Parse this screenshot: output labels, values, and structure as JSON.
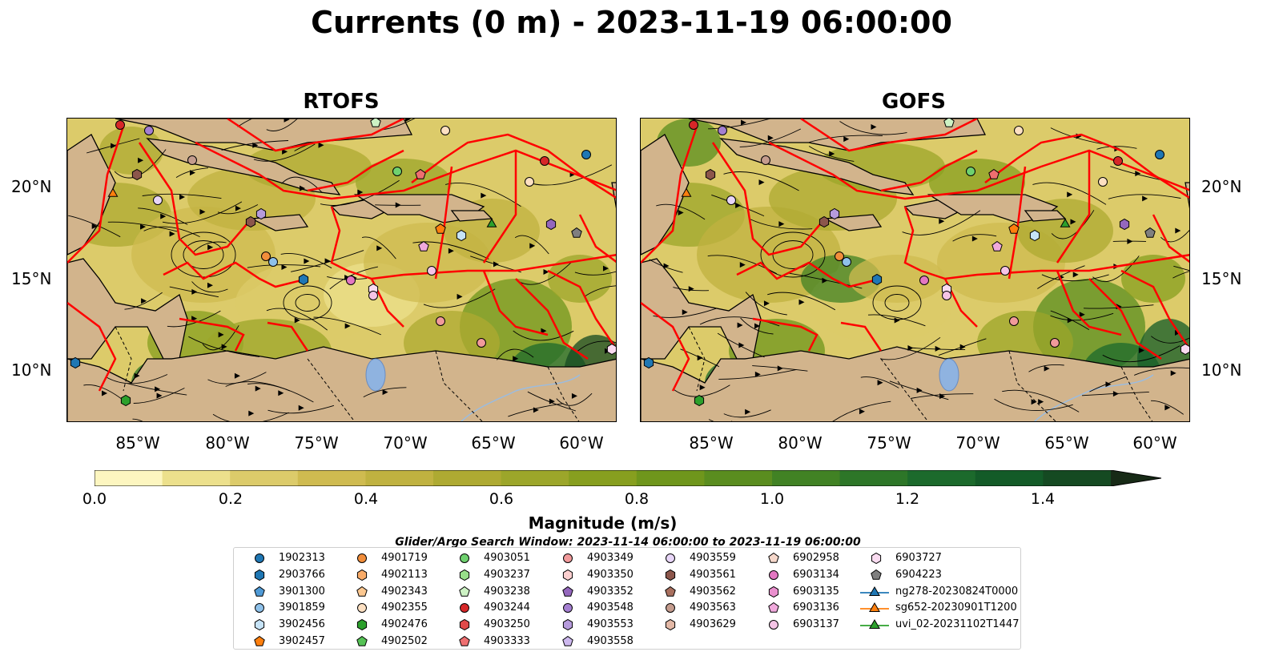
{
  "title": "Currents (0 m) - 2023-11-19 06:00:00",
  "panels": [
    {
      "title": "RTOFS"
    },
    {
      "title": "GOFS"
    }
  ],
  "lat_labels": [
    "20°N",
    "15°N",
    "10°N"
  ],
  "lon_labels": [
    "85°W",
    "80°W",
    "75°W",
    "70°W",
    "65°W",
    "60°W"
  ],
  "colorbar": {
    "label": "Magnitude (m/s)",
    "ticks": [
      "0.0",
      "0.2",
      "0.4",
      "0.6",
      "0.8",
      "1.0",
      "1.2",
      "1.4"
    ],
    "colors": [
      "#fdf6c0",
      "#ece08c",
      "#dccb6a",
      "#cfbb50",
      "#c0b240",
      "#aeaa32",
      "#9ca62a",
      "#879f1f",
      "#6f961c",
      "#5a8d1f",
      "#418224",
      "#2d7628",
      "#1c6a2c",
      "#135b28",
      "#154a22",
      "#16381b",
      "#172a16"
    ]
  },
  "search_window": "Glider/Argo Search Window: 2023-11-14 06:00:00 to 2023-11-19 06:00:00",
  "legend": {
    "columns": [
      [
        {
          "label": "1902313",
          "marker": "circle",
          "color": "#1f77b4"
        },
        {
          "label": "2903766",
          "marker": "hexagon",
          "color": "#1f77b4"
        },
        {
          "label": "3901300",
          "marker": "pentagon",
          "color": "#4f9ad6"
        },
        {
          "label": "3901859",
          "marker": "circle",
          "color": "#8ec1ea"
        },
        {
          "label": "3902456",
          "marker": "hexagon",
          "color": "#c6e3f7"
        },
        {
          "label": "3902457",
          "marker": "pentagon",
          "color": "#ff7f0e"
        }
      ],
      [
        {
          "label": "4901719",
          "marker": "circle",
          "color": "#f28e3b"
        },
        {
          "label": "4902113",
          "marker": "hexagon",
          "color": "#f9ab68"
        },
        {
          "label": "4902343",
          "marker": "pentagon",
          "color": "#fcc891"
        },
        {
          "label": "4902355",
          "marker": "circle",
          "color": "#fde0c2"
        },
        {
          "label": "4902476",
          "marker": "hexagon",
          "color": "#2ca02c"
        },
        {
          "label": "4902502",
          "marker": "pentagon",
          "color": "#55c255"
        }
      ],
      [
        {
          "label": "4903051",
          "marker": "circle",
          "color": "#6fd16f"
        },
        {
          "label": "4903237",
          "marker": "hexagon",
          "color": "#98df8a"
        },
        {
          "label": "4903238",
          "marker": "pentagon",
          "color": "#cdf2c4"
        },
        {
          "label": "4903244",
          "marker": "circle",
          "color": "#d62728"
        },
        {
          "label": "4903250",
          "marker": "hexagon",
          "color": "#e04a4a"
        },
        {
          "label": "4903333",
          "marker": "pentagon",
          "color": "#ee6f70"
        }
      ],
      [
        {
          "label": "4903349",
          "marker": "circle",
          "color": "#f19a9b"
        },
        {
          "label": "4903350",
          "marker": "hexagon",
          "color": "#fbcfcf"
        },
        {
          "label": "4903352",
          "marker": "pentagon",
          "color": "#9467bd"
        },
        {
          "label": "4903548",
          "marker": "circle",
          "color": "#a47fd1"
        },
        {
          "label": "4903553",
          "marker": "hexagon",
          "color": "#b69bdc"
        },
        {
          "label": "4903558",
          "marker": "pentagon",
          "color": "#cdb8ee"
        }
      ],
      [
        {
          "label": "4903559",
          "marker": "circle",
          "color": "#e8d6f8"
        },
        {
          "label": "4903561",
          "marker": "hexagon",
          "color": "#8c564b"
        },
        {
          "label": "4903562",
          "marker": "pentagon",
          "color": "#a9705f"
        },
        {
          "label": "4903563",
          "marker": "circle",
          "color": "#c49c8e"
        },
        {
          "label": "4903629",
          "marker": "hexagon",
          "color": "#e3b8a6"
        },
        null
      ],
      [
        {
          "label": "6902958",
          "marker": "pentagon",
          "color": "#f6d8cb"
        },
        {
          "label": "6903134",
          "marker": "circle",
          "color": "#e377c2"
        },
        {
          "label": "6903135",
          "marker": "hexagon",
          "color": "#ea8fce"
        },
        {
          "label": "6903136",
          "marker": "pentagon",
          "color": "#f0a9dc"
        },
        {
          "label": "6903137",
          "marker": "circle",
          "color": "#f5c4e6"
        },
        null
      ],
      [
        {
          "label": "6903727",
          "marker": "hexagon",
          "color": "#fadcf1"
        },
        {
          "label": "6904223",
          "marker": "pentagon",
          "color": "#7f7f7f"
        },
        {
          "label": "ng278-20230824T0000",
          "marker": "triangle-line",
          "color": "#1f77b4"
        },
        {
          "label": "sg652-20230901T1200",
          "marker": "triangle-line",
          "color": "#ff7f0e"
        },
        {
          "label": "uvi_02-20231102T1447",
          "marker": "triangle-line",
          "color": "#2ca02c"
        },
        null
      ]
    ]
  },
  "colors": {
    "land": "#d2b48c",
    "lake": "#8fb3e0",
    "eez_boundaries": "#ff0000",
    "streamlines": "#000000"
  }
}
